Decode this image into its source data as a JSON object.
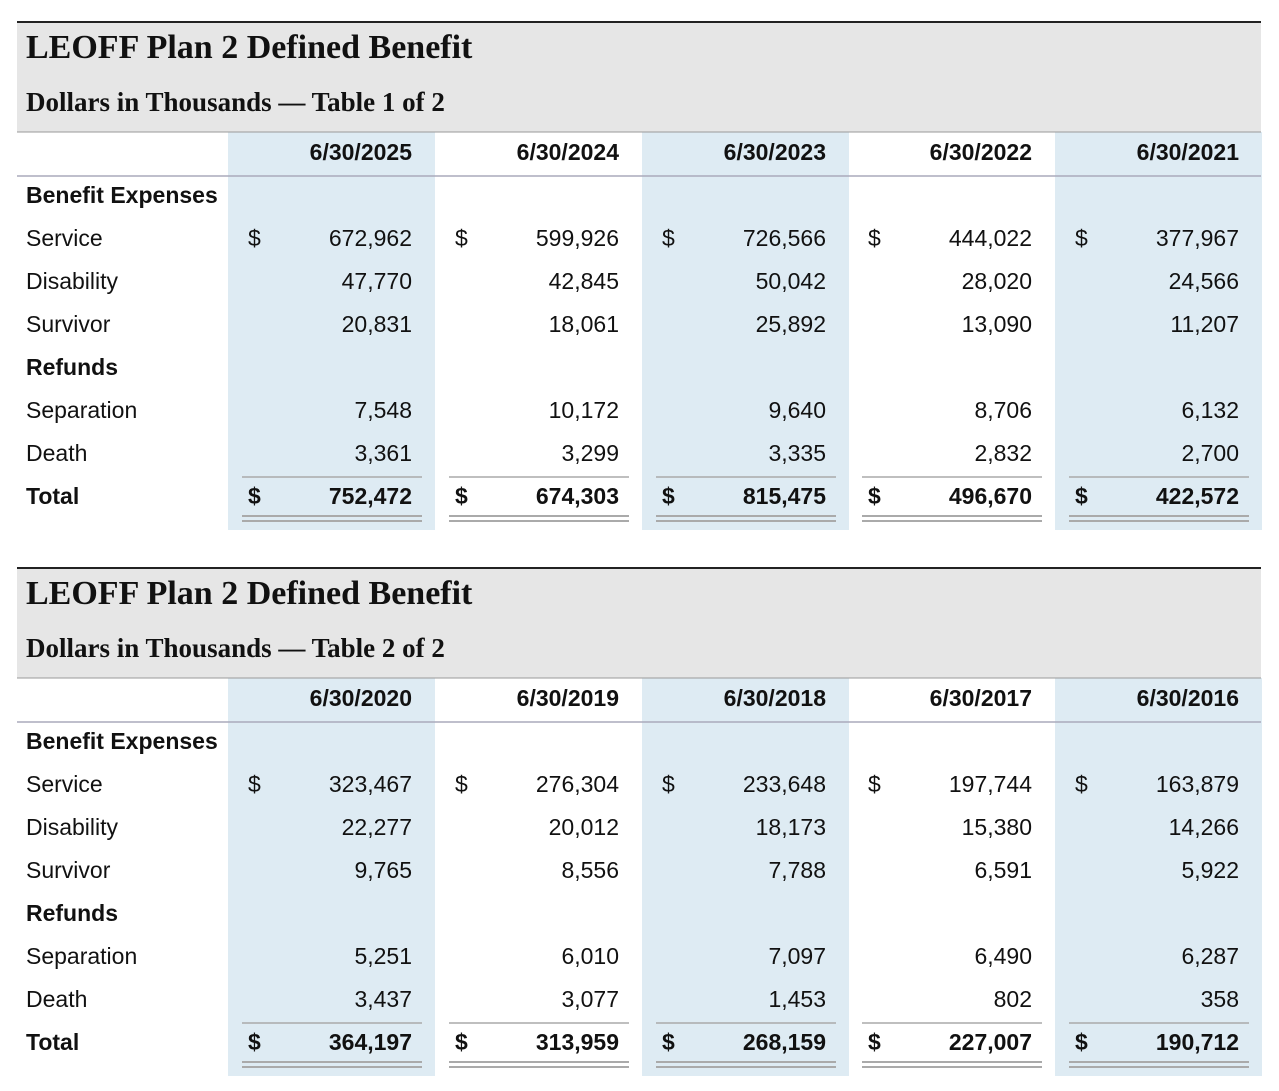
{
  "tables": [
    {
      "title": "LEOFF Plan 2 Defined Benefit",
      "subtitle": "Dollars in Thousands — Table 1 of 2",
      "currency_symbol": "$",
      "columns": [
        "6/30/2025",
        "6/30/2024",
        "6/30/2023",
        "6/30/2022",
        "6/30/2021"
      ],
      "sections": [
        {
          "heading": "Benefit Expenses",
          "rows": [
            {
              "label": "Service",
              "values": [
                "672,962",
                "599,926",
                "726,566",
                "444,022",
                "377,967"
              ]
            },
            {
              "label": "Disability",
              "values": [
                "47,770",
                "42,845",
                "50,042",
                "28,020",
                "24,566"
              ]
            },
            {
              "label": "Survivor",
              "values": [
                "20,831",
                "18,061",
                "25,892",
                "13,090",
                "11,207"
              ]
            }
          ]
        },
        {
          "heading": "Refunds",
          "rows": [
            {
              "label": "Separation",
              "values": [
                "7,548",
                "10,172",
                "9,640",
                "8,706",
                "6,132"
              ]
            },
            {
              "label": "Death",
              "values": [
                "3,361",
                "3,299",
                "3,335",
                "2,832",
                "2,700"
              ]
            }
          ]
        }
      ],
      "total": {
        "label": "Total",
        "values": [
          "752,472",
          "674,303",
          "815,475",
          "496,670",
          "422,572"
        ]
      }
    },
    {
      "title": "LEOFF Plan 2 Defined Benefit",
      "subtitle": "Dollars in Thousands — Table 2 of 2",
      "currency_symbol": "$",
      "columns": [
        "6/30/2020",
        "6/30/2019",
        "6/30/2018",
        "6/30/2017",
        "6/30/2016"
      ],
      "sections": [
        {
          "heading": "Benefit Expenses",
          "rows": [
            {
              "label": "Service",
              "values": [
                "323,467",
                "276,304",
                "233,648",
                "197,744",
                "163,879"
              ]
            },
            {
              "label": "Disability",
              "values": [
                "22,277",
                "20,012",
                "18,173",
                "15,380",
                "14,266"
              ]
            },
            {
              "label": "Survivor",
              "values": [
                "9,765",
                "8,556",
                "7,788",
                "6,591",
                "5,922"
              ]
            }
          ]
        },
        {
          "heading": "Refunds",
          "rows": [
            {
              "label": "Separation",
              "values": [
                "5,251",
                "6,010",
                "7,097",
                "6,490",
                "6,287"
              ]
            },
            {
              "label": "Death",
              "values": [
                "3,437",
                "3,077",
                "1,453",
                "802",
                "358"
              ]
            }
          ]
        }
      ],
      "total": {
        "label": "Total",
        "values": [
          "364,197",
          "313,959",
          "268,159",
          "227,007",
          "190,712"
        ]
      }
    }
  ]
}
